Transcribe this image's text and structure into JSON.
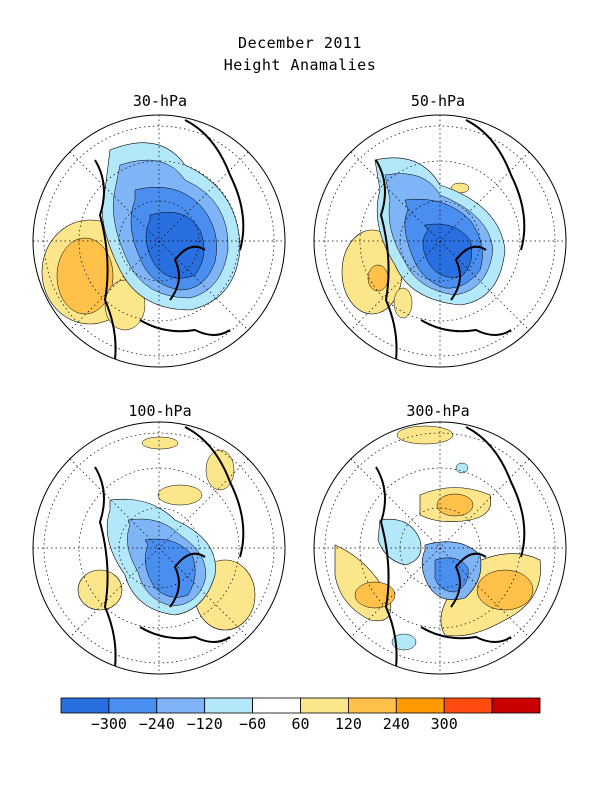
{
  "figure": {
    "title_line1": "December 2011",
    "title_line2": "Height Anamalies"
  },
  "panels": [
    {
      "label": "30-hPa"
    },
    {
      "label": "50-hPa"
    },
    {
      "label": "100-hPa"
    },
    {
      "label": "300-hPa"
    }
  ],
  "colorbar": {
    "colors": [
      "#2a6fe0",
      "#4a8ff0",
      "#7fb4f6",
      "#b3e8fa",
      "#ffffff",
      "#fce68c",
      "#ffc14a",
      "#ff9a00",
      "#ff4a10",
      "#c80000"
    ],
    "tick_labels": [
      "−300",
      "−240",
      "−120",
      "−60",
      "60",
      "120",
      "240",
      "300"
    ]
  }
}
